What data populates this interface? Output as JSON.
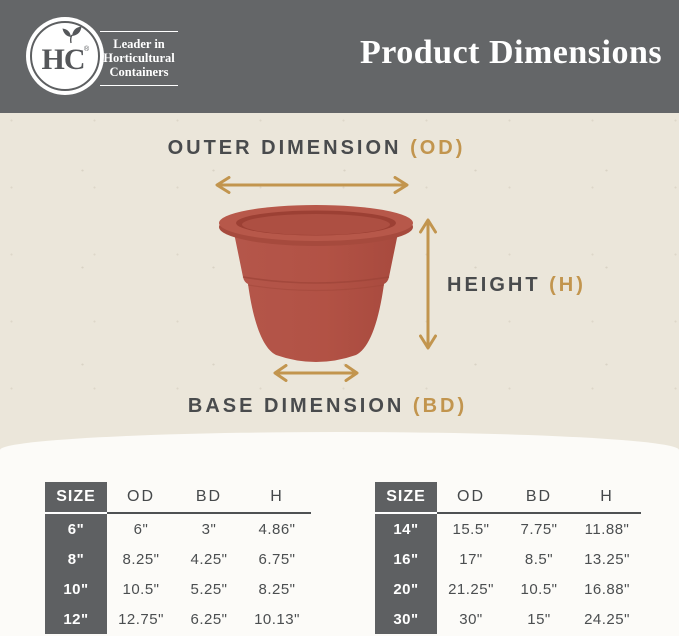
{
  "colors": {
    "header_bg": "#646668",
    "hero_bg": "#ebe6da",
    "bottom_bg": "#fcfbf8",
    "accent_gold": "#c2954e",
    "terracotta": "#b25245",
    "dark_text": "#494b4d",
    "size_col_bg": "#5e6062"
  },
  "header": {
    "title": "Product Dimensions",
    "logo": {
      "monogram": "HC",
      "registered_mark": "®",
      "tagline_lines": [
        "Leader in",
        "Horticultural",
        "Containers"
      ]
    }
  },
  "diagram": {
    "outer_label": "OUTER DIMENSION",
    "outer_abbr": "(OD)",
    "height_label": "HEIGHT",
    "height_abbr": "(H)",
    "base_label": "BASE DIMENSION",
    "base_abbr": "(BD)"
  },
  "tables": [
    {
      "headers": [
        "SIZE",
        "OD",
        "BD",
        "H"
      ],
      "rows": [
        [
          "6\"",
          "6\"",
          "3\"",
          "4.86\""
        ],
        [
          "8\"",
          "8.25\"",
          "4.25\"",
          "6.75\""
        ],
        [
          "10\"",
          "10.5\"",
          "5.25\"",
          "8.25\""
        ],
        [
          "12\"",
          "12.75\"",
          "6.25\"",
          "10.13\""
        ]
      ]
    },
    {
      "headers": [
        "SIZE",
        "OD",
        "BD",
        "H"
      ],
      "rows": [
        [
          "14\"",
          "15.5\"",
          "7.75\"",
          "11.88\""
        ],
        [
          "16\"",
          "17\"",
          "8.5\"",
          "13.25\""
        ],
        [
          "20\"",
          "21.25\"",
          "10.5\"",
          "16.88\""
        ],
        [
          "30\"",
          "30\"",
          "15\"",
          "24.25\""
        ]
      ]
    }
  ]
}
